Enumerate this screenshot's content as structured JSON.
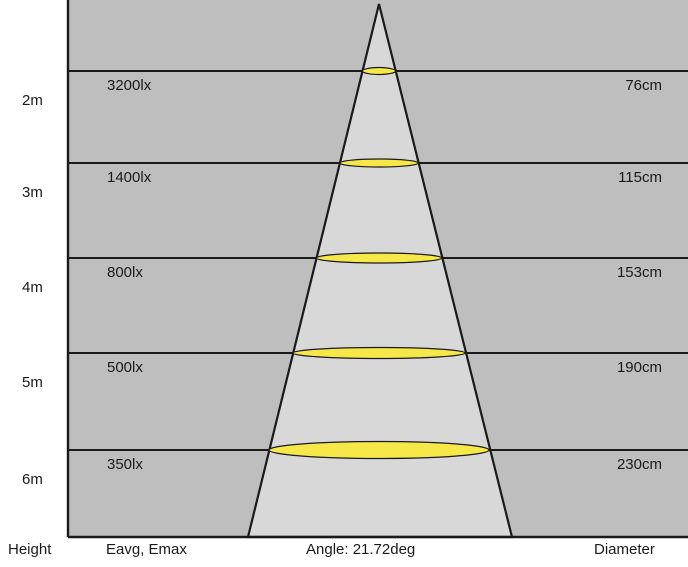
{
  "angle_label": "Angle: 21.72deg",
  "footer": {
    "height_label": "Height",
    "eavg_label": "Eavg, Emax",
    "angle_label": "Angle: 21.72deg",
    "diameter_label": "Diameter"
  },
  "rows": [
    {
      "height": "2m",
      "lux": "3200lx",
      "diameter": "76cm"
    },
    {
      "height": "3m",
      "lux": "1400lx",
      "diameter": "115cm"
    },
    {
      "height": "4m",
      "lux": "800lx",
      "diameter": "153cm"
    },
    {
      "height": "5m",
      "lux": "500lx",
      "diameter": "190cm"
    },
    {
      "height": "6m",
      "lux": "350lx",
      "diameter": "230cm"
    }
  ],
  "colors": {
    "panel": "#bebebf",
    "beam": "#d8d8d9",
    "spot": "#f7e84a",
    "line": "#1a1a1a"
  }
}
